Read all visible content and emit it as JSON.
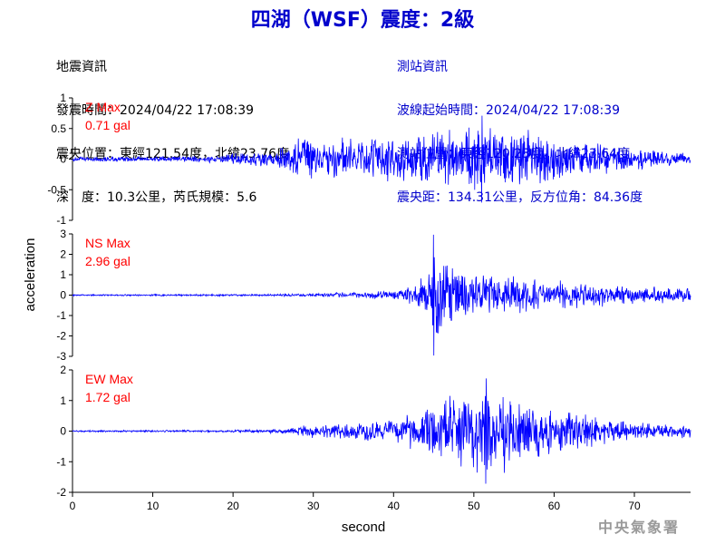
{
  "title": "四湖（WSF）震度：2級",
  "quake_info": {
    "header": "地震資訊",
    "origin_time": "發震時間：2024/04/22 17:08:39",
    "epicenter": "震央位置：東經121.54度，北緯23.76度",
    "depth_magnitude": "深　度：10.3公里，芮氏規模：5.6"
  },
  "station_info": {
    "header": "測站資訊",
    "wave_start": "波線起始時間：2024/04/22 17:08:39",
    "station_location": "測站位置：東經120.23度，北緯23.64度",
    "distance": "震央距：134.31公里，反方位角：84.36度"
  },
  "watermark": "中央氣象署",
  "colors": {
    "trace": "#0000ff",
    "annotation": "#ff0000",
    "title": "#0000cc",
    "axis": "#000000"
  },
  "chart_data": [
    {
      "type": "line",
      "component": "Z",
      "annotation_title": "Z Max",
      "annotation_value": "0.71 gal",
      "peak": 0.71,
      "ylim": [
        -1,
        1
      ],
      "yticks": [
        -1,
        -0.5,
        0,
        0.5,
        1
      ],
      "ytick_labels": [
        "-1",
        "-0.5",
        "0",
        "0.5",
        "1"
      ],
      "xlim": [
        0,
        77
      ],
      "envelope": [
        [
          0,
          0.04
        ],
        [
          10,
          0.05
        ],
        [
          19,
          0.07
        ],
        [
          20,
          0.12
        ],
        [
          25,
          0.14
        ],
        [
          27,
          0.35
        ],
        [
          29,
          0.5
        ],
        [
          31,
          0.35
        ],
        [
          35,
          0.4
        ],
        [
          38,
          0.38
        ],
        [
          42,
          0.45
        ],
        [
          46,
          0.5
        ],
        [
          50,
          0.62
        ],
        [
          51,
          0.71
        ],
        [
          53,
          0.55
        ],
        [
          57,
          0.5
        ],
        [
          61,
          0.4
        ],
        [
          65,
          0.3
        ],
        [
          70,
          0.2
        ],
        [
          75,
          0.12
        ],
        [
          77,
          0.1
        ]
      ]
    },
    {
      "type": "line",
      "component": "NS",
      "annotation_title": "NS Max",
      "annotation_value": "2.96 gal",
      "peak": 2.96,
      "ylim": [
        -3,
        3
      ],
      "yticks": [
        -3,
        -2,
        -1,
        0,
        1,
        2,
        3
      ],
      "ytick_labels": [
        "-3",
        "-2",
        "-1",
        "0",
        "1",
        "2",
        "3"
      ],
      "xlim": [
        0,
        77
      ],
      "envelope": [
        [
          0,
          0.04
        ],
        [
          20,
          0.05
        ],
        [
          28,
          0.07
        ],
        [
          35,
          0.15
        ],
        [
          40,
          0.25
        ],
        [
          43,
          0.6
        ],
        [
          44.5,
          1.5
        ],
        [
          45,
          2.96
        ],
        [
          46,
          1.8
        ],
        [
          48,
          1.4
        ],
        [
          52,
          1.1
        ],
        [
          55,
          1.0
        ],
        [
          60,
          0.8
        ],
        [
          65,
          0.6
        ],
        [
          70,
          0.5
        ],
        [
          75,
          0.4
        ],
        [
          77,
          0.4
        ]
      ]
    },
    {
      "type": "line",
      "component": "EW",
      "annotation_title": "EW Max",
      "annotation_value": "1.72 gal",
      "peak": 1.72,
      "ylim": [
        -2,
        2
      ],
      "yticks": [
        -2,
        -1,
        0,
        1,
        2
      ],
      "ytick_labels": [
        "-2",
        "-1",
        "0",
        "1",
        "2"
      ],
      "xlim": [
        0,
        77
      ],
      "envelope": [
        [
          0,
          0.03
        ],
        [
          20,
          0.04
        ],
        [
          27,
          0.1
        ],
        [
          30,
          0.25
        ],
        [
          35,
          0.3
        ],
        [
          40,
          0.45
        ],
        [
          44,
          0.9
        ],
        [
          47,
          1.3
        ],
        [
          50,
          1.4
        ],
        [
          51.5,
          1.72
        ],
        [
          54,
          1.4
        ],
        [
          58,
          1.0
        ],
        [
          62,
          0.7
        ],
        [
          66,
          0.5
        ],
        [
          70,
          0.3
        ],
        [
          75,
          0.25
        ],
        [
          77,
          0.3
        ]
      ]
    }
  ],
  "axes": {
    "ylabel": "acceleration",
    "xlabel": "second",
    "xticks": [
      0,
      10,
      20,
      30,
      40,
      50,
      60,
      70
    ],
    "xtick_labels": [
      "0",
      "10",
      "20",
      "30",
      "40",
      "50",
      "60",
      "70"
    ]
  }
}
